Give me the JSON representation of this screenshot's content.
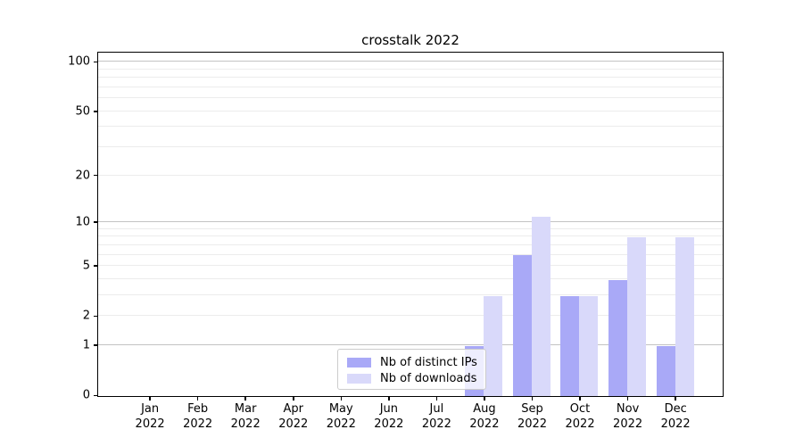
{
  "chart_data": {
    "type": "bar",
    "title": "crosstalk 2022",
    "categories": [
      "Jan",
      "Feb",
      "Mar",
      "Apr",
      "May",
      "Jun",
      "Jul",
      "Aug",
      "Sep",
      "Oct",
      "Nov",
      "Dec"
    ],
    "category_year": "2022",
    "series": [
      {
        "name": "Nb of distinct IPs",
        "color": "#a9a9f7",
        "values": [
          0,
          0,
          0,
          0,
          0,
          0,
          0,
          1,
          6,
          3,
          4,
          1
        ]
      },
      {
        "name": "Nb of downloads",
        "color": "#d9d9fa",
        "values": [
          0,
          0,
          0,
          0,
          0,
          0,
          0,
          3,
          11,
          3,
          8,
          8
        ]
      }
    ],
    "y_scale": "log1p",
    "ylim": [
      0,
      113
    ],
    "y_tick_values": [
      0,
      1,
      2,
      5,
      10,
      20,
      50,
      100
    ],
    "y_tick_labels": [
      "0",
      "1",
      "2",
      "5",
      "10",
      "20",
      "50",
      "100"
    ],
    "y_major_gridlines": [
      1,
      10,
      100
    ],
    "y_minor_gridlines": [
      2,
      3,
      4,
      5,
      6,
      7,
      8,
      9,
      20,
      30,
      40,
      50,
      60,
      70,
      80,
      90
    ],
    "grid": "both",
    "legend": {
      "position": "lower center"
    },
    "colors": {
      "major_grid": "#c3c3c3",
      "minor_grid": "#ececec",
      "spine": "#000000",
      "background": "#ffffff"
    }
  }
}
